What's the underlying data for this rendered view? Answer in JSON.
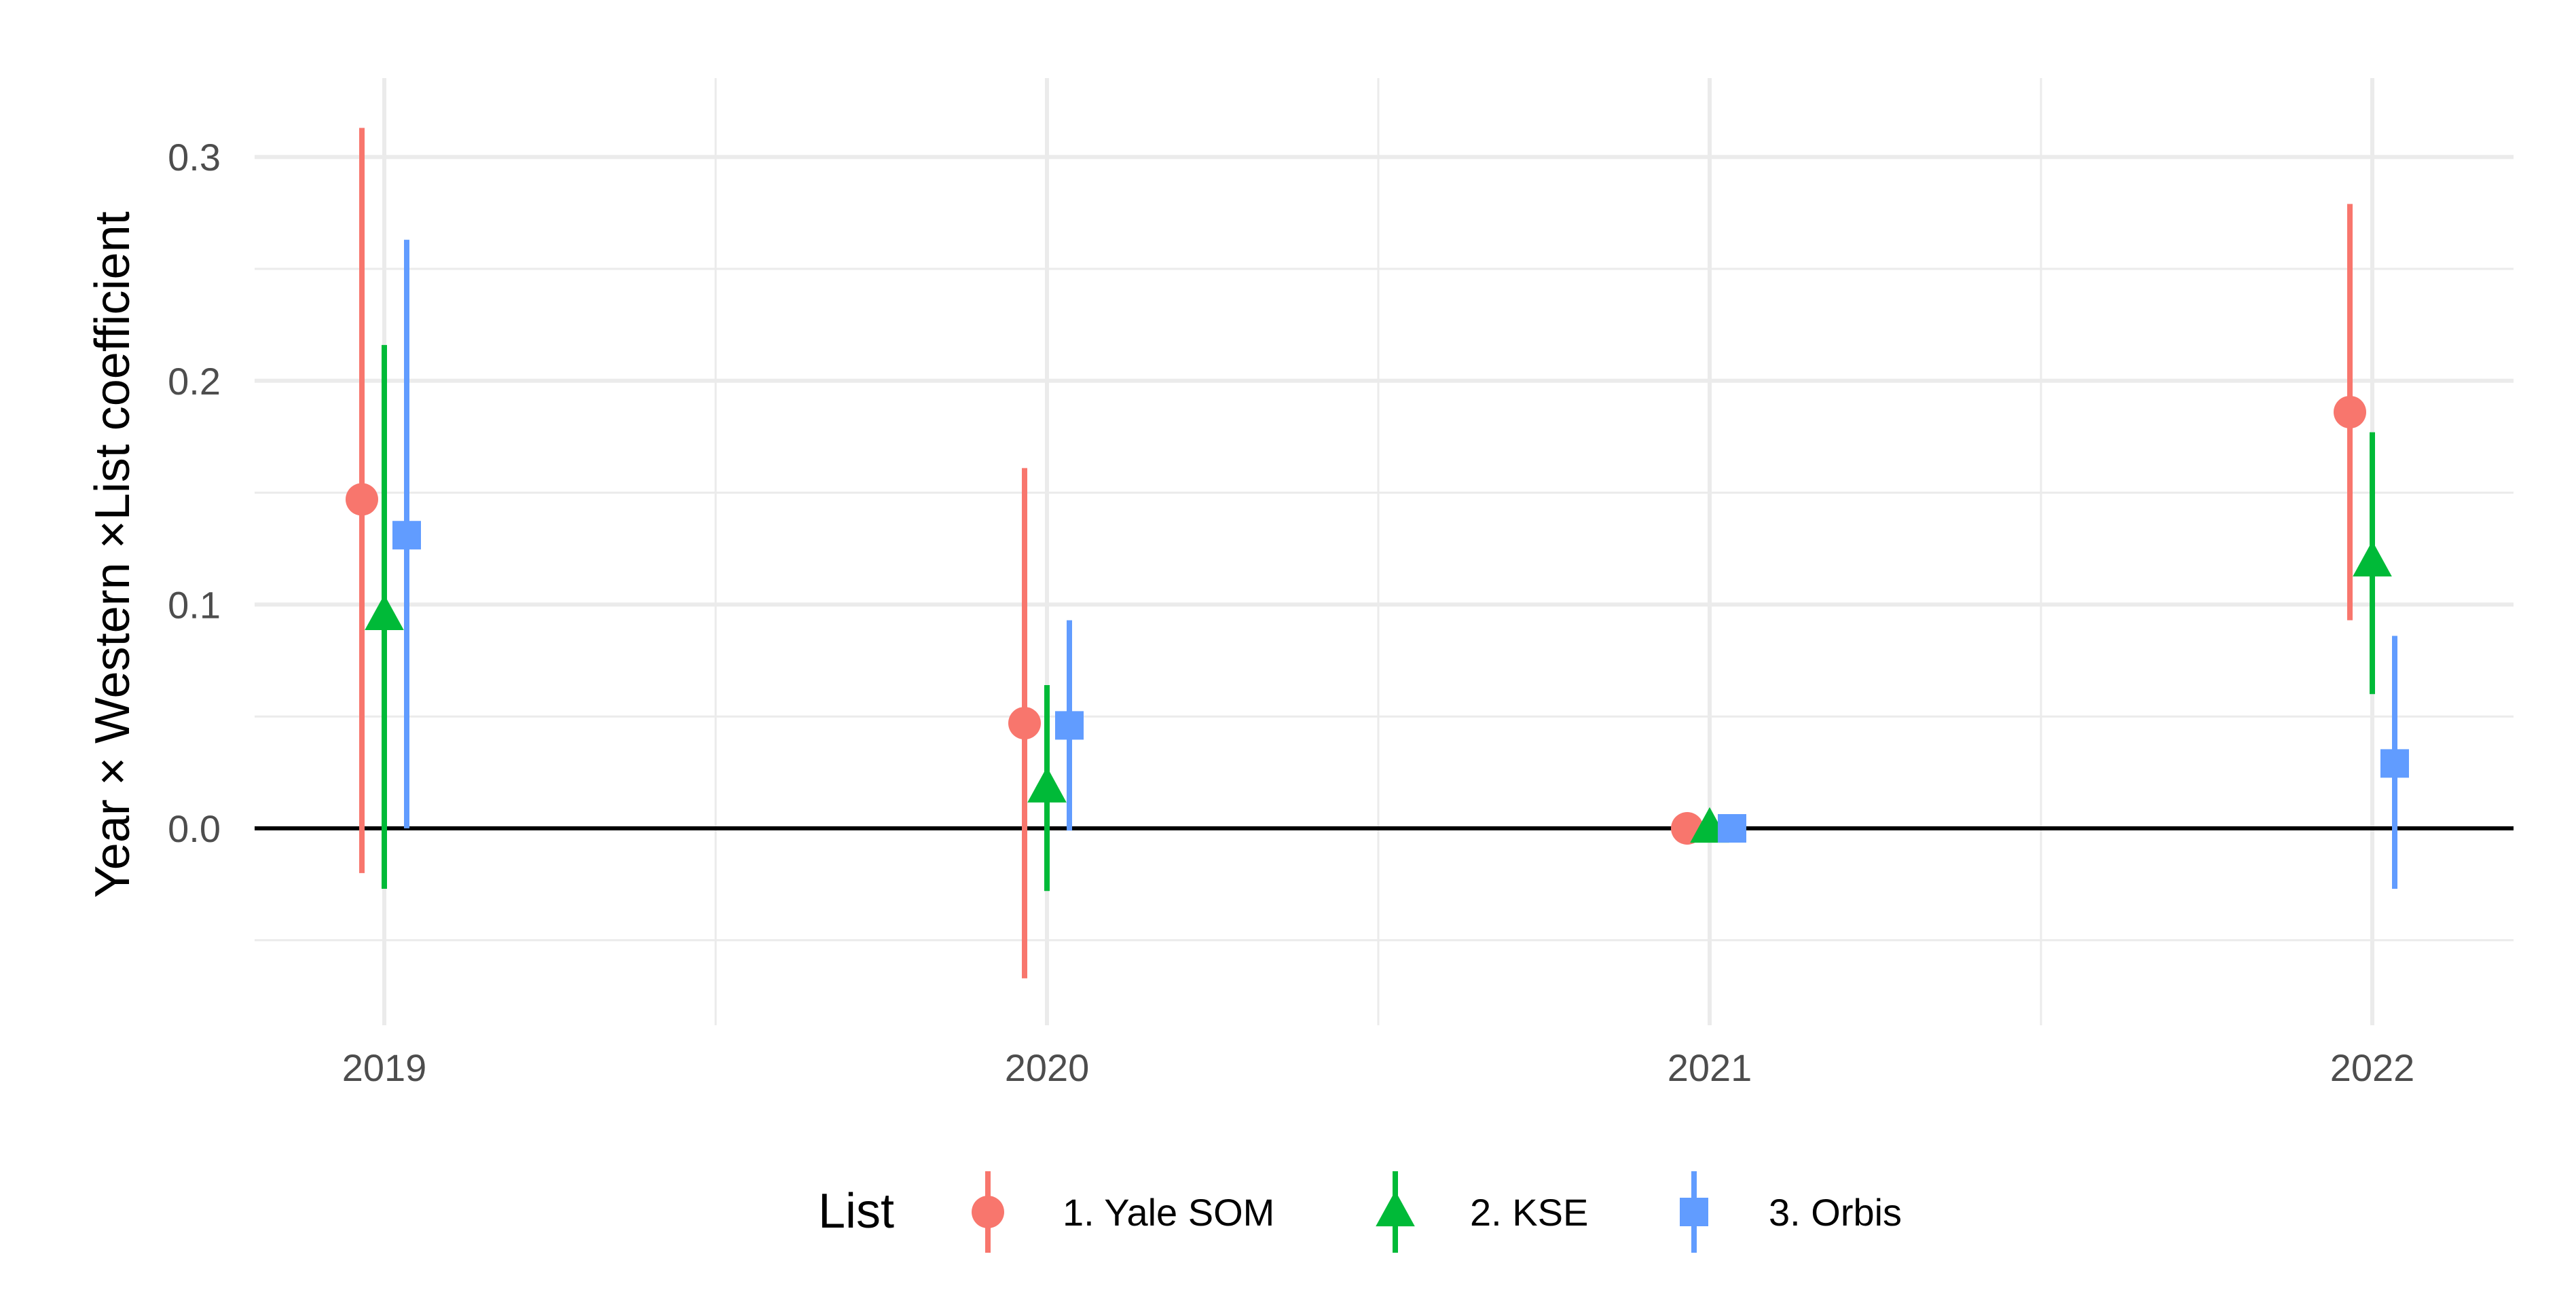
{
  "chart_data": {
    "type": "scatter",
    "title": "",
    "xlabel": "",
    "ylabel": "Year × Western ×List coefficient",
    "categories": [
      "2019",
      "2020",
      "2021",
      "2022"
    ],
    "yticks": [
      "-",
      "0.0",
      "0.1",
      "0.2",
      "0.3"
    ],
    "ylim": [
      -0.09,
      0.335
    ],
    "grid": true,
    "reference_line_y": 0,
    "legend": {
      "title": "List",
      "position": "bottom"
    },
    "series": [
      {
        "name": "1. Yale SOM",
        "color": "#F8766D",
        "marker": "circle",
        "points": [
          {
            "x": "2019",
            "y": 0.147,
            "low": -0.02,
            "high": 0.313
          },
          {
            "x": "2020",
            "y": 0.047,
            "low": -0.067,
            "high": 0.161
          },
          {
            "x": "2021",
            "y": 0.0,
            "low": 0.0,
            "high": 0.0
          },
          {
            "x": "2022",
            "y": 0.186,
            "low": 0.093,
            "high": 0.279
          }
        ]
      },
      {
        "name": "2. KSE",
        "color": "#00BA38",
        "marker": "triangle",
        "points": [
          {
            "x": "2019",
            "y": 0.095,
            "low": -0.027,
            "high": 0.216
          },
          {
            "x": "2020",
            "y": 0.018,
            "low": -0.028,
            "high": 0.064
          },
          {
            "x": "2021",
            "y": 0.0,
            "low": 0.0,
            "high": 0.0
          },
          {
            "x": "2022",
            "y": 0.119,
            "low": 0.06,
            "high": 0.177
          }
        ]
      },
      {
        "name": "3. Orbis",
        "color": "#619CFF",
        "marker": "square",
        "points": [
          {
            "x": "2019",
            "y": 0.131,
            "low": 0.0,
            "high": 0.263
          },
          {
            "x": "2020",
            "y": 0.046,
            "low": -0.001,
            "high": 0.093
          },
          {
            "x": "2021",
            "y": 0.0,
            "low": 0.0,
            "high": 0.0
          },
          {
            "x": "2022",
            "y": 0.029,
            "low": -0.027,
            "high": 0.086
          }
        ]
      }
    ]
  }
}
